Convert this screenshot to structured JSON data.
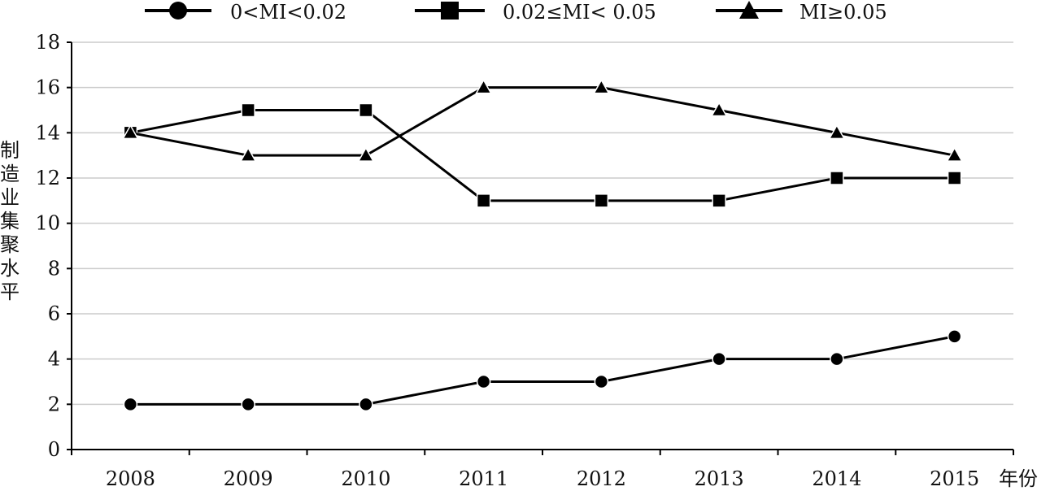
{
  "chart_data": {
    "type": "line",
    "categories": [
      "2008",
      "2009",
      "2010",
      "2011",
      "2012",
      "2013",
      "2014",
      "2015"
    ],
    "series": [
      {
        "name": "0<MI<0.02",
        "marker": "circle",
        "values": [
          2,
          2,
          2,
          3,
          3,
          4,
          4,
          5
        ]
      },
      {
        "name": "0.02≤MI< 0.05",
        "marker": "square",
        "values": [
          14,
          15,
          15,
          11,
          11,
          11,
          12,
          12
        ]
      },
      {
        "name": "MI≥0.05",
        "marker": "triangle",
        "values": [
          14,
          13,
          13,
          16,
          16,
          15,
          14,
          13
        ]
      }
    ],
    "ylabel": "制造业集聚水平",
    "xlabel": "年份",
    "ylim": [
      0,
      18
    ],
    "yticks": [
      "0",
      "2",
      "4",
      "6",
      "8",
      "10",
      "12",
      "14",
      "16",
      "18"
    ],
    "grid": true,
    "legend_position": "top",
    "line_color": "#000000",
    "grid_color": "#cccccc"
  }
}
